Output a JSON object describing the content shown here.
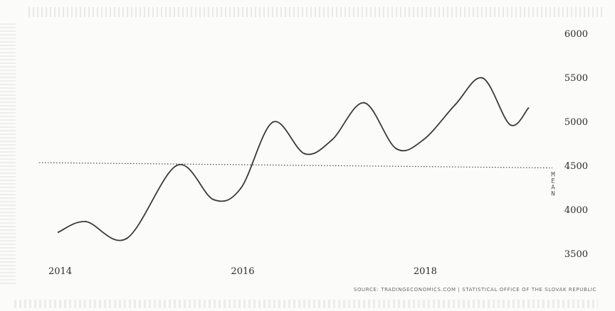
{
  "chart_data": {
    "type": "line",
    "title": "",
    "xlabel": "",
    "ylabel": "",
    "xlim": [
      2014,
      2019.6
    ],
    "ylim": [
      3500,
      6000
    ],
    "y_ticks": [
      3500,
      4000,
      4500,
      5000,
      5500,
      6000
    ],
    "y_tick_labels": [
      "3500",
      "4000",
      "4500",
      "5000",
      "5500",
      "6000"
    ],
    "x_ticks": [
      2014,
      2016,
      2018
    ],
    "x_tick_labels": [
      "2014",
      "2016",
      "2018"
    ],
    "y_axis_position": "right",
    "grid": false,
    "legend": "none",
    "series": [
      {
        "x": [
          2014.0,
          2014.3,
          2014.75,
          2015.3,
          2015.7,
          2016.0,
          2016.35,
          2016.7,
          2017.0,
          2017.35,
          2017.7,
          2018.0,
          2018.35,
          2018.65,
          2018.95,
          2019.15
        ],
        "values": [
          3750,
          3870,
          3680,
          4510,
          4120,
          4250,
          5000,
          4640,
          4800,
          5220,
          4700,
          4800,
          5200,
          5500,
          4970,
          5160
        ],
        "color": "#3a3a3a"
      }
    ],
    "reference_lines": [
      {
        "label": "MEAN",
        "value": 4540,
        "style": "dotted",
        "color": "#4a4a4a"
      }
    ],
    "source": "SOURCE: TRADINGECONOMICS.COM | STATISTICAL OFFICE OF THE SLOVAK REPUBLIC"
  }
}
